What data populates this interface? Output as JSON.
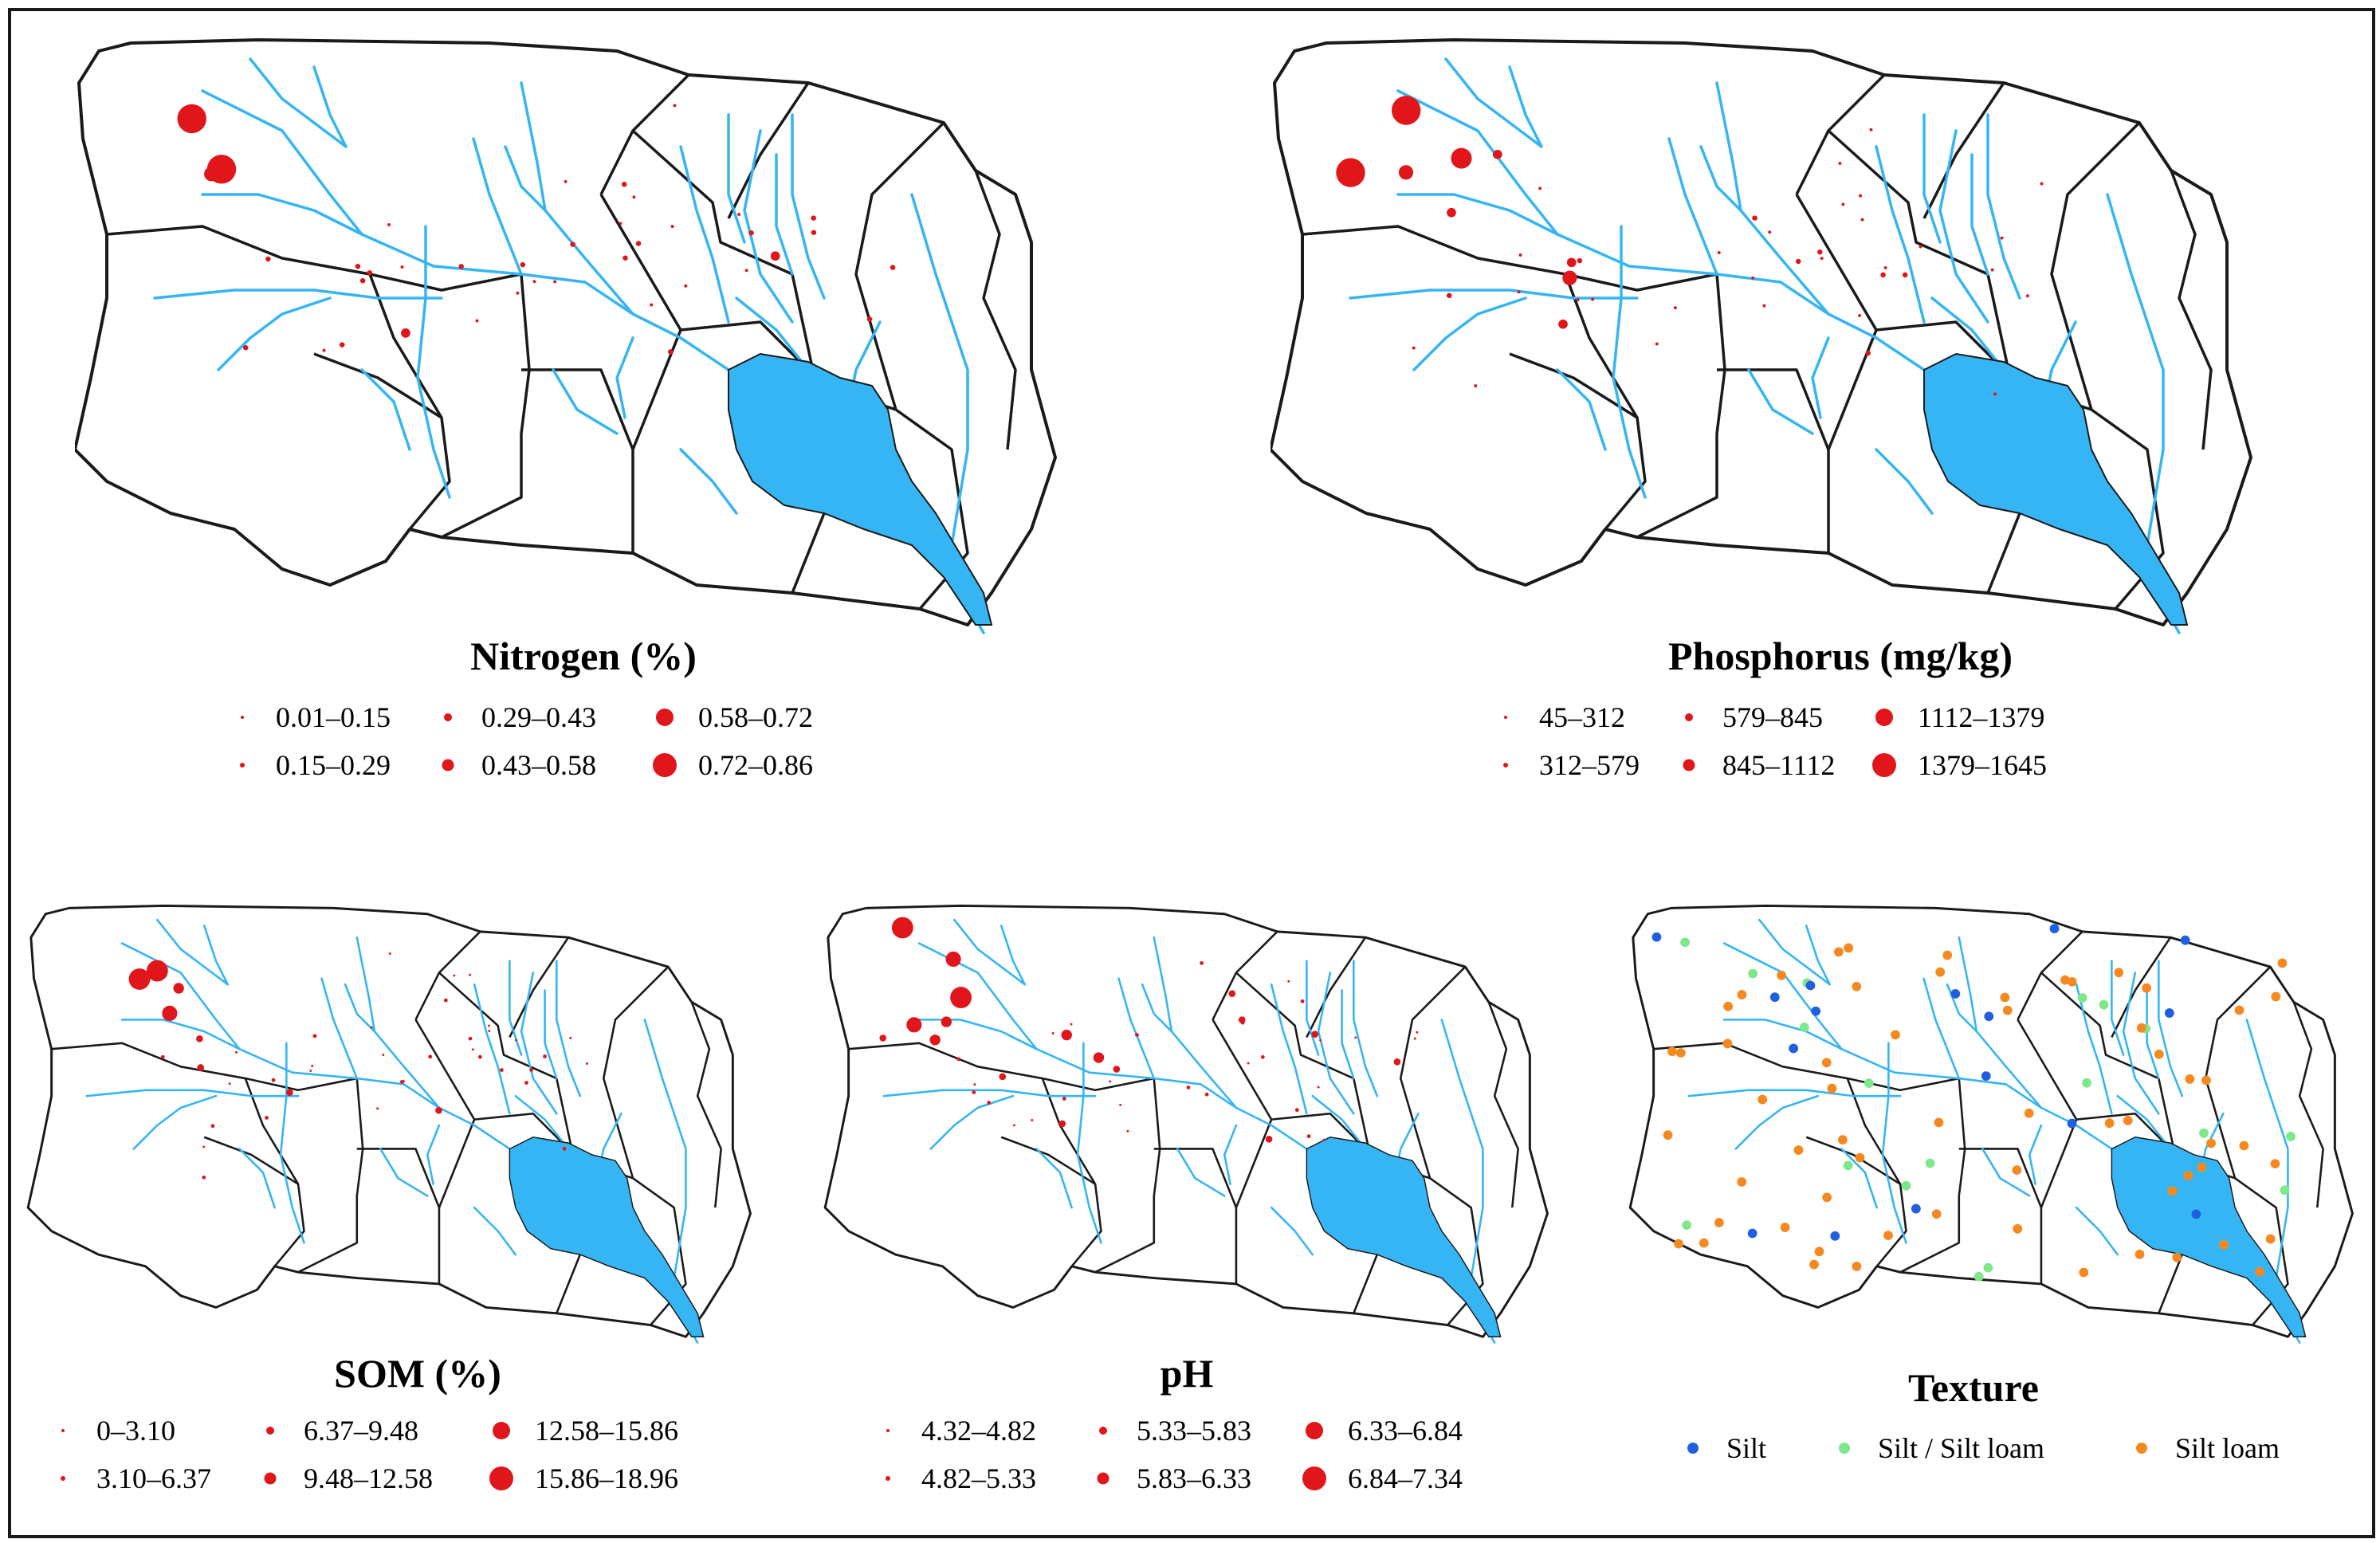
{
  "colors": {
    "outline": "#1a1a1a",
    "water": "#35b5f4",
    "point": "#e0161b",
    "silt": "#1f5fe0",
    "silt_silt_loam": "#7de88a",
    "silt_loam": "#f5891f"
  },
  "panels": [
    {
      "id": "nitrogen",
      "title": "Nitrogen (%)",
      "legend": [
        {
          "label": "0.01–0.15",
          "size_class": 1
        },
        {
          "label": "0.15–0.29",
          "size_class": 2
        },
        {
          "label": "0.29–0.43",
          "size_class": 3
        },
        {
          "label": "0.43–0.58",
          "size_class": 4
        },
        {
          "label": "0.58–0.72",
          "size_class": 5
        },
        {
          "label": "0.72–0.86",
          "size_class": 6
        }
      ]
    },
    {
      "id": "phosphorus",
      "title": "Phosphorus (mg/kg)",
      "legend": [
        {
          "label": "45–312",
          "size_class": 1
        },
        {
          "label": "312–579",
          "size_class": 2
        },
        {
          "label": "579–845",
          "size_class": 3
        },
        {
          "label": "845–1112",
          "size_class": 4
        },
        {
          "label": "1112–1379",
          "size_class": 5
        },
        {
          "label": "1379–1645",
          "size_class": 6
        }
      ]
    },
    {
      "id": "som",
      "title": "SOM (%)",
      "legend": [
        {
          "label": "0–3.10",
          "size_class": 1
        },
        {
          "label": "3.10–6.37",
          "size_class": 2
        },
        {
          "label": "6.37–9.48",
          "size_class": 3
        },
        {
          "label": "9.48–12.58",
          "size_class": 4
        },
        {
          "label": "12.58–15.86",
          "size_class": 5
        },
        {
          "label": "15.86–18.96",
          "size_class": 6
        }
      ]
    },
    {
      "id": "ph",
      "title": "pH",
      "legend": [
        {
          "label": "4.32–4.82",
          "size_class": 1
        },
        {
          "label": "4.82–5.33",
          "size_class": 2
        },
        {
          "label": "5.33–5.83",
          "size_class": 3
        },
        {
          "label": "5.83–6.33",
          "size_class": 4
        },
        {
          "label": "6.33–6.84",
          "size_class": 5
        },
        {
          "label": "6.84–7.34",
          "size_class": 6
        }
      ]
    },
    {
      "id": "texture",
      "title": "Texture",
      "legend": [
        {
          "label": "Silt",
          "color_key": "silt"
        },
        {
          "label": "Silt / Silt loam",
          "color_key": "silt_silt_loam"
        },
        {
          "label": "Silt loam",
          "color_key": "silt_loam"
        }
      ]
    }
  ],
  "samples": {
    "nitrogen": [
      [
        0.12,
        0.12,
        6
      ],
      [
        0.17,
        0.21,
        5
      ],
      [
        0.18,
        0.37,
        3
      ],
      [
        0.2,
        0.88,
        1
      ],
      [
        0.13,
        0.6,
        2
      ],
      [
        0.28,
        0.96,
        1
      ],
      [
        0.36,
        0.56,
        3
      ],
      [
        0.27,
        0.82,
        2
      ],
      [
        0.38,
        0.62,
        1
      ],
      [
        0.42,
        0.54,
        2
      ],
      [
        0.3,
        0.67,
        1
      ],
      [
        0.31,
        0.77,
        3
      ],
      [
        0.33,
        0.82,
        2
      ],
      [
        0.35,
        0.55,
        1
      ],
      [
        0.52,
        0.62,
        1
      ],
      [
        0.46,
        0.52,
        1
      ],
      [
        0.54,
        0.7,
        1
      ],
      [
        0.5,
        0.95,
        1
      ],
      [
        0.56,
        0.78,
        1
      ],
      [
        0.6,
        0.42,
        2
      ],
      [
        0.62,
        0.25,
        1
      ],
      [
        0.65,
        0.24,
        1
      ],
      [
        0.69,
        0.42,
        2
      ],
      [
        0.72,
        0.62,
        1
      ],
      [
        0.7,
        0.24,
        1
      ],
      [
        0.74,
        0.3,
        1
      ],
      [
        0.78,
        0.44,
        2
      ],
      [
        0.73,
        0.52,
        1
      ],
      [
        0.76,
        0.76,
        2
      ],
      [
        0.64,
        0.72,
        1
      ],
      [
        0.67,
        0.66,
        1
      ],
      [
        0.62,
        0.5,
        1
      ],
      [
        0.57,
        0.53,
        1
      ],
      [
        0.86,
        0.5,
        1
      ],
      [
        0.88,
        0.6,
        2
      ],
      [
        0.82,
        0.56,
        1
      ],
      [
        0.96,
        0.62,
        1
      ],
      [
        0.92,
        0.5,
        1
      ],
      [
        0.72,
        1.0,
        2
      ],
      [
        0.88,
        1.0,
        1
      ]
    ]
  }
}
